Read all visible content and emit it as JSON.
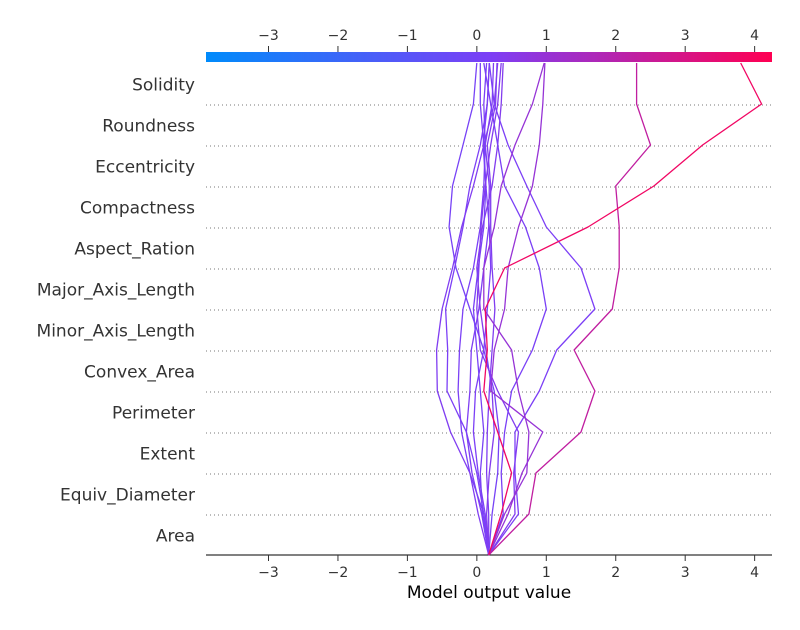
{
  "chart_data": {
    "type": "line",
    "subtype": "shap-decision-plot",
    "xlabel": "Model output value",
    "xlim": [
      -3.9,
      4.25
    ],
    "base_value": 0.17,
    "x_ticks": [
      -3,
      -2,
      -1,
      0,
      1,
      2,
      3,
      4
    ],
    "x_tick_labels": [
      "−3",
      "−2",
      "−1",
      "0",
      "1",
      "2",
      "3",
      "4"
    ],
    "features_top_to_bottom": [
      "Solidity",
      "Roundness",
      "Eccentricity",
      "Compactness",
      "Aspect_Ration",
      "Major_Axis_Length",
      "Minor_Axis_Length",
      "Convex_Area",
      "Perimeter",
      "Extent",
      "Equiv_Diameter",
      "Area"
    ],
    "colorbar": {
      "low_color": "#008bfb",
      "mid_color": "#7c3ff6",
      "high_color": "#ff0052"
    },
    "grid": "dotted horizontal separators between features",
    "series_note": "each series: model output value at each boundary, from bottom (base value) up to top (final prediction)",
    "series": [
      {
        "values": [
          0.17,
          0.17,
          0.14,
          0.15,
          0.18,
          0.22,
          0.26,
          0.22,
          0.2,
          0.2,
          0.15,
          0.27,
          0.29
        ]
      },
      {
        "values": [
          0.17,
          0.12,
          0.02,
          -0.05,
          -0.02,
          0.1,
          0.15,
          0.2,
          0.18,
          0.13,
          0.09,
          0.15,
          0.18
        ]
      },
      {
        "values": [
          0.17,
          0.07,
          -0.07,
          -0.15,
          -0.1,
          -0.08,
          0.03,
          0.1,
          0.17,
          0.18,
          0.12,
          0.22,
          0.24
        ]
      },
      {
        "values": [
          0.17,
          0.1,
          -0.1,
          -0.22,
          -0.27,
          -0.25,
          -0.2,
          -0.05,
          0.05,
          0.1,
          0.12,
          0.1,
          0.14
        ]
      },
      {
        "values": [
          0.17,
          0.14,
          0.18,
          0.25,
          0.22,
          0.13,
          0.05,
          0.0,
          0.08,
          0.22,
          0.3,
          0.35,
          0.38
        ]
      },
      {
        "values": [
          0.17,
          0.22,
          0.3,
          0.32,
          0.25,
          0.1,
          -0.1,
          -0.3,
          -0.4,
          -0.35,
          -0.2,
          -0.05,
          0.0
        ]
      },
      {
        "values": [
          0.17,
          0.08,
          0.05,
          0.1,
          0.05,
          0.0,
          -0.05,
          0.02,
          0.1,
          0.13,
          0.1,
          0.05,
          0.05
        ]
      },
      {
        "values": [
          0.17,
          0.1,
          0.0,
          -0.15,
          -0.43,
          -0.42,
          -0.45,
          -0.32,
          -0.2,
          -0.1,
          0.05,
          0.15,
          0.18
        ]
      },
      {
        "values": [
          0.17,
          0.02,
          -0.1,
          -0.38,
          -0.57,
          -0.58,
          -0.5,
          -0.35,
          -0.22,
          -0.05,
          0.1,
          0.25,
          0.3
        ]
      },
      {
        "values": [
          0.17,
          0.55,
          0.53,
          0.6,
          0.3,
          0.05,
          0.0,
          0.03,
          0.06,
          0.12,
          0.2,
          0.3,
          0.35
        ]
      },
      {
        "values": [
          0.17,
          0.6,
          0.55,
          0.55,
          0.9,
          1.15,
          1.7,
          1.5,
          1.0,
          0.72,
          0.45,
          0.25,
          0.18
        ]
      },
      {
        "values": [
          0.17,
          0.38,
          0.35,
          0.4,
          0.5,
          0.8,
          1.0,
          0.9,
          0.7,
          0.4,
          0.3,
          0.2,
          0.1
        ]
      },
      {
        "values": [
          0.17,
          0.4,
          0.72,
          0.75,
          0.6,
          0.5,
          0.1,
          0.1,
          0.25,
          0.35,
          0.55,
          0.8,
          0.97
        ]
      },
      {
        "values": [
          0.17,
          0.45,
          0.65,
          0.95,
          0.2,
          0.25,
          0.4,
          0.45,
          0.6,
          0.8,
          0.9,
          0.95,
          0.98
        ]
      },
      {
        "values": [
          0.17,
          0.75,
          0.85,
          1.5,
          1.7,
          1.4,
          1.95,
          2.05,
          2.05,
          2.0,
          2.5,
          2.3,
          2.3
        ]
      },
      {
        "values": [
          0.17,
          0.35,
          0.5,
          0.3,
          0.1,
          0.15,
          0.12,
          0.4,
          1.6,
          2.55,
          3.25,
          4.1,
          3.8
        ]
      }
    ]
  }
}
